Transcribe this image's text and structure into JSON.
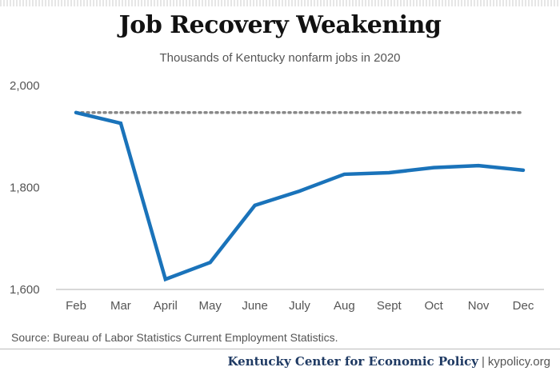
{
  "header": {
    "title": "Job Recovery Weakening",
    "subtitle": "Thousands of Kentucky nonfarm jobs in 2020"
  },
  "chart_data": {
    "type": "line",
    "categories": [
      "Feb",
      "Mar",
      "April",
      "May",
      "June",
      "July",
      "Aug",
      "Sept",
      "Oct",
      "Nov",
      "Dec"
    ],
    "series": [
      {
        "values": [
          1947,
          1926,
          1620,
          1653,
          1765,
          1793,
          1826,
          1829,
          1839,
          1843,
          1834
        ],
        "color": "#1a73ba"
      }
    ],
    "reference_line": {
      "value": 1947,
      "style": "dotted",
      "color": "#888888"
    },
    "ylim": [
      1600,
      2000
    ],
    "yticks": [
      1600,
      1800,
      2000
    ],
    "ytick_labels": [
      "1,600",
      "1,800",
      "2,000"
    ],
    "grid": false,
    "xlabel": "",
    "ylabel": ""
  },
  "footer": {
    "source": "Source: Bureau of Labor Statistics Current Employment Statistics.",
    "org": "Kentucky Center for Economic Policy",
    "separator": "|",
    "site": "kypolicy.org"
  }
}
